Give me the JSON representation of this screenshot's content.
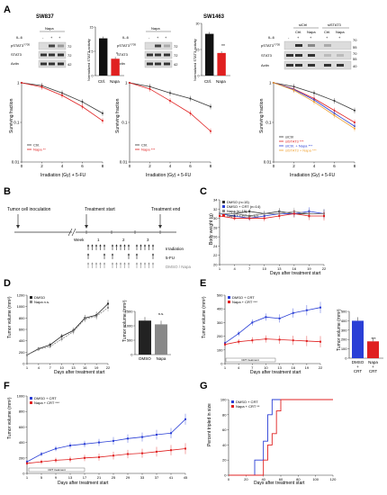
{
  "panel_labels": {
    "a": "A",
    "b": "B",
    "c": "C",
    "d": "D",
    "e": "E",
    "f": "F",
    "g": "G"
  },
  "panelA": {
    "cell_lines": {
      "sw837": "SW837",
      "sw1463": "SW1463"
    },
    "wb": {
      "il6": "IL-6",
      "napa": "Napa",
      "sisctrl": "siCtrl",
      "sistat3": "siSTAT3",
      "ctrl": "Ctrl.",
      "napa_short": "Napa",
      "pstat3": "pSTAT3",
      "pstat3_sup": "Y705",
      "stat3": "STAT3",
      "actin": "Actin",
      "plus": "+",
      "minus": "-",
      "mw_a": [
        "72",
        "72",
        "42"
      ],
      "mw_b": [
        "72",
        "72",
        "42"
      ],
      "mw_c": [
        "70",
        "55",
        "70",
        "55",
        "40"
      ]
    },
    "bar_ylabel": "Normalized STAT3-activity",
    "bar_sig": "*",
    "bar_sig2": "**",
    "surv": {
      "ylabel": "Surviving fraction",
      "xlabel": "Irradiation (Gy) + 5-FU",
      "xticks": [
        "0",
        "2",
        "4",
        "6",
        "8"
      ],
      "yticks": [
        "1",
        "0.1",
        "0.01"
      ],
      "leg_ctrl": "Ctrl.",
      "leg_napa": "Napa",
      "sig_a": "**",
      "sig_b": "***",
      "leg_c": [
        "siCtrl",
        "siSTAT3",
        "siCtrl. + Napa",
        "siSTAT3 + Napa"
      ],
      "sig_c": [
        "",
        "***",
        "***",
        "***"
      ]
    }
  },
  "panelB": {
    "labels": {
      "inoc": "Tumor cell inoculation",
      "start": "Treatment start",
      "end": "Treatment end",
      "week": "Week",
      "w1": "1",
      "w2": "2",
      "w3": "3",
      "irr": "Irradiation",
      "fu": "5-FU",
      "dn": "DMSO / Napa"
    }
  },
  "panelC": {
    "ylabel": "Body weight (g)",
    "xlabel": "Days after treatment start",
    "legend": [
      "DMSO (n=15)",
      "DMSO + CRT (n=14)",
      "Napa (n=15)",
      "Napa + CRT (n=12)"
    ],
    "xticks": [
      "1",
      "4",
      "7",
      "10",
      "13",
      "16",
      "19",
      "22"
    ],
    "yticks": [
      "20",
      "22",
      "24",
      "26",
      "28",
      "30",
      "32",
      "34"
    ]
  },
  "panelD": {
    "ylabel": "Tumor volume (mm³)",
    "xlabel": "Days after treatment start",
    "legend": [
      "DMSO",
      "Napa"
    ],
    "ns": "n.s.",
    "xticks": [
      "1",
      "4",
      "7",
      "10",
      "13",
      "16",
      "19",
      "22"
    ],
    "yticks": [
      "0",
      "200",
      "400",
      "600",
      "800",
      "1000",
      "1200"
    ],
    "bar_yticks": [
      "0",
      "500",
      "1000",
      "1500"
    ],
    "bar_ns": "n.s.",
    "bar_cats": [
      "DMSO",
      "Napa"
    ]
  },
  "panelE": {
    "ylabel": "Tumor volume (mm³)",
    "xlabel": "Days after treatment start",
    "legend": [
      "DMSO + CRT",
      "Napa + CRT"
    ],
    "sig": "***",
    "crt": "CRT treatment",
    "xticks": [
      "1",
      "4",
      "7",
      "10",
      "13",
      "16",
      "19",
      "22"
    ],
    "yticks": [
      "0",
      "100",
      "200",
      "300",
      "400",
      "500"
    ],
    "bar_yticks": [
      "0",
      "100",
      "200",
      "300",
      "400",
      "500"
    ],
    "bar_sig": "***",
    "bar_cats": [
      "DMSO",
      "Napa"
    ],
    "bar_cats2": [
      "+",
      "+"
    ],
    "bar_cats3": [
      "CRT",
      "CRT"
    ]
  },
  "panelF": {
    "ylabel": "Tumor volume (mm³)",
    "xlabel": "Days after treatment start",
    "legend": [
      "DMSO + CRT",
      "Napa + CRT"
    ],
    "sig": "***",
    "crt": "CRT treatment",
    "xticks": [
      "1",
      "5",
      "9",
      "13",
      "17",
      "21",
      "25",
      "29",
      "33",
      "37",
      "41",
      "45"
    ],
    "yticks": [
      "0",
      "200",
      "400",
      "600",
      "800",
      "1000"
    ]
  },
  "panelG": {
    "ylabel": "Percent tripled in size",
    "xlabel": "Days after treatment start",
    "legend": [
      "DMSO + CRT",
      "Napa + CRT"
    ],
    "sig": "**",
    "xticks": [
      "0",
      "20",
      "40",
      "60",
      "80",
      "100",
      "120"
    ],
    "yticks": [
      "0",
      "20",
      "40",
      "60",
      "80",
      "100"
    ]
  },
  "colors": {
    "ctrl": "#333333",
    "napa": "#e02020",
    "blue": "#2a3fd6",
    "gray": "#8a8a8a",
    "orange": "#f0a030"
  },
  "chart_data": [
    {
      "type": "bar",
      "panel": "A-SW837-activity",
      "categories": [
        "Ctrl.",
        "Napa"
      ],
      "values": [
        11.5,
        5.2
      ],
      "ylim": [
        0,
        15
      ],
      "ylabel": "Normalized STAT3-activity"
    },
    {
      "type": "bar",
      "panel": "A-SW1463-activity",
      "categories": [
        "Ctrl.",
        "Napa"
      ],
      "values": [
        24,
        13
      ],
      "ylim": [
        0,
        30
      ],
      "ylabel": "Normalized STAT3-activity"
    },
    {
      "type": "line",
      "panel": "A-SW837-survival",
      "x": [
        0,
        2,
        4,
        6,
        8
      ],
      "log_y": true,
      "series": [
        {
          "name": "Ctrl.",
          "values": [
            1,
            0.85,
            0.55,
            0.33,
            0.17
          ]
        },
        {
          "name": "Napa",
          "values": [
            1,
            0.78,
            0.48,
            0.25,
            0.11
          ]
        }
      ]
    },
    {
      "type": "line",
      "panel": "A-SW1463-survival",
      "x": [
        0,
        2,
        4,
        6,
        8
      ],
      "log_y": true,
      "series": [
        {
          "name": "Ctrl.",
          "values": [
            1,
            0.8,
            0.55,
            0.4,
            0.25
          ]
        },
        {
          "name": "Napa",
          "values": [
            1,
            0.7,
            0.35,
            0.17,
            0.06
          ]
        }
      ]
    },
    {
      "type": "line",
      "panel": "A-siRNA-survival",
      "x": [
        0,
        2,
        4,
        6,
        8
      ],
      "log_y": true,
      "series": [
        {
          "name": "siCtrl",
          "values": [
            1,
            0.8,
            0.55,
            0.35,
            0.2
          ]
        },
        {
          "name": "siSTAT3",
          "values": [
            1,
            0.7,
            0.4,
            0.2,
            0.1
          ]
        },
        {
          "name": "siCtrl. + Napa",
          "values": [
            1,
            0.68,
            0.37,
            0.17,
            0.08
          ]
        },
        {
          "name": "siSTAT3 + Napa",
          "values": [
            1,
            0.65,
            0.33,
            0.15,
            0.07
          ]
        }
      ]
    },
    {
      "type": "line",
      "panel": "C",
      "x": [
        1,
        4,
        7,
        10,
        13,
        16,
        19,
        22
      ],
      "ylim": [
        20,
        34
      ],
      "series": [
        {
          "name": "DMSO (n=15)",
          "values": [
            31,
            31,
            31.5,
            31,
            31.5,
            31,
            31,
            31
          ]
        },
        {
          "name": "DMSO + CRT (n=14)",
          "values": [
            31,
            30.5,
            30,
            30.5,
            31,
            31,
            31.5,
            31
          ]
        },
        {
          "name": "Napa (n=15)",
          "values": [
            31,
            31,
            30.5,
            31,
            31,
            31.5,
            31,
            31
          ]
        },
        {
          "name": "Napa + CRT (n=12)",
          "values": [
            30.5,
            30,
            30,
            30,
            30.5,
            31,
            30.5,
            30.5
          ]
        }
      ]
    },
    {
      "type": "line",
      "panel": "D",
      "x": [
        1,
        4,
        7,
        10,
        13,
        16,
        19,
        22
      ],
      "ylim": [
        0,
        1200
      ],
      "series": [
        {
          "name": "DMSO",
          "values": [
            150,
            260,
            330,
            480,
            580,
            800,
            850,
            1050
          ]
        },
        {
          "name": "Napa",
          "values": [
            150,
            250,
            300,
            430,
            560,
            780,
            830,
            980
          ]
        }
      ]
    },
    {
      "type": "bar",
      "panel": "D-bar",
      "categories": [
        "DMSO",
        "Napa"
      ],
      "values": [
        1180,
        1050
      ],
      "ylim": [
        0,
        1500
      ]
    },
    {
      "type": "line",
      "panel": "E",
      "x": [
        1,
        4,
        7,
        10,
        13,
        16,
        19,
        22
      ],
      "ylim": [
        0,
        500
      ],
      "series": [
        {
          "name": "DMSO + CRT",
          "values": [
            150,
            220,
            300,
            340,
            330,
            370,
            390,
            410
          ]
        },
        {
          "name": "Napa + CRT",
          "values": [
            140,
            160,
            170,
            180,
            175,
            170,
            165,
            160
          ]
        }
      ]
    },
    {
      "type": "bar",
      "panel": "E-bar",
      "categories": [
        "DMSO + CRT",
        "Napa + CRT"
      ],
      "values": [
        400,
        180
      ],
      "ylim": [
        0,
        500
      ]
    },
    {
      "type": "line",
      "panel": "F",
      "x": [
        1,
        5,
        9,
        13,
        17,
        21,
        25,
        29,
        33,
        37,
        41,
        45
      ],
      "ylim": [
        0,
        1000
      ],
      "series": [
        {
          "name": "DMSO + CRT",
          "values": [
            150,
            250,
            320,
            360,
            380,
            400,
            420,
            450,
            470,
            500,
            520,
            700
          ]
        },
        {
          "name": "Napa + CRT",
          "values": [
            130,
            150,
            170,
            180,
            200,
            210,
            230,
            250,
            260,
            280,
            300,
            320
          ]
        }
      ]
    },
    {
      "type": "line",
      "panel": "G",
      "x": [
        0,
        20,
        30,
        40,
        45,
        50,
        55,
        60,
        100,
        120
      ],
      "ylim": [
        0,
        100
      ],
      "series": [
        {
          "name": "DMSO + CRT",
          "values": [
            0,
            0,
            20,
            45,
            80,
            100,
            100,
            100,
            100,
            100
          ]
        },
        {
          "name": "Napa + CRT",
          "values": [
            0,
            0,
            0,
            20,
            40,
            55,
            85,
            100,
            100,
            100
          ]
        }
      ]
    }
  ]
}
